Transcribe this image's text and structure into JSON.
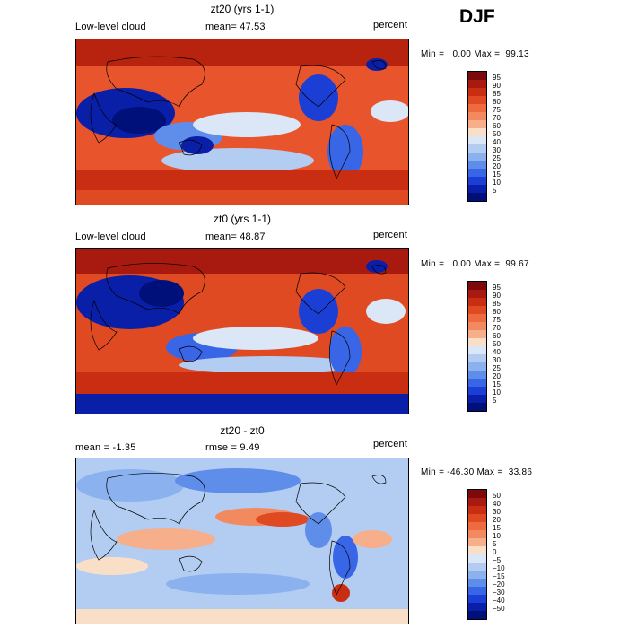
{
  "season": "DJF",
  "panels": [
    {
      "title": "zt20 (yrs 1-1)",
      "left_label": "Low-level cloud",
      "mid_label": "mean=  47.53",
      "right_label": "percent",
      "stats": "Min =   0.00 Max =  99.13",
      "colorbar_labels": [
        "95",
        "90",
        "85",
        "80",
        "75",
        "70",
        "60",
        "50",
        "40",
        "30",
        "25",
        "20",
        "15",
        "10",
        "5"
      ],
      "colorbar_colors": [
        "#7d0a0a",
        "#a81a10",
        "#c92d12",
        "#e04a22",
        "#ee6b3f",
        "#f38a5f",
        "#f7ae8a",
        "#fadfc8",
        "#dbe7f7",
        "#b3cdf2",
        "#8bb2ee",
        "#5f8eea",
        "#3966e6",
        "#1b3fd5",
        "#0a1fa8",
        "#00107a"
      ]
    },
    {
      "title": "zt0 (yrs 1-1)",
      "left_label": "Low-level cloud",
      "mid_label": "mean=  48.87",
      "right_label": "percent",
      "stats": "Min =   0.00 Max =  99.67",
      "colorbar_labels": [
        "95",
        "90",
        "85",
        "80",
        "75",
        "70",
        "60",
        "50",
        "40",
        "30",
        "25",
        "20",
        "15",
        "10",
        "5"
      ],
      "colorbar_colors": [
        "#7d0a0a",
        "#a81a10",
        "#c92d12",
        "#e04a22",
        "#ee6b3f",
        "#f38a5f",
        "#f7ae8a",
        "#fadfc8",
        "#dbe7f7",
        "#b3cdf2",
        "#8bb2ee",
        "#5f8eea",
        "#3966e6",
        "#1b3fd5",
        "#0a1fa8",
        "#00107a"
      ]
    },
    {
      "title": "zt20 - zt0",
      "left_label": "mean =  -1.35",
      "mid_label": "rmse =   9.49",
      "right_label": "percent",
      "stats": "Min = -46.30 Max =  33.86",
      "colorbar_labels": [
        "50",
        "40",
        "30",
        "20",
        "15",
        "10",
        "5",
        "0",
        "−5",
        "−10",
        "−15",
        "−20",
        "−30",
        "−40",
        "−50"
      ],
      "colorbar_colors": [
        "#7d0a0a",
        "#a81a10",
        "#c92d12",
        "#e04a22",
        "#ee6b3f",
        "#f38a5f",
        "#f7ae8a",
        "#fadfc8",
        "#dbe7f7",
        "#b3cdf2",
        "#8bb2ee",
        "#5f8eea",
        "#3966e6",
        "#1b3fd5",
        "#0a1fa8",
        "#00107a"
      ]
    }
  ]
}
